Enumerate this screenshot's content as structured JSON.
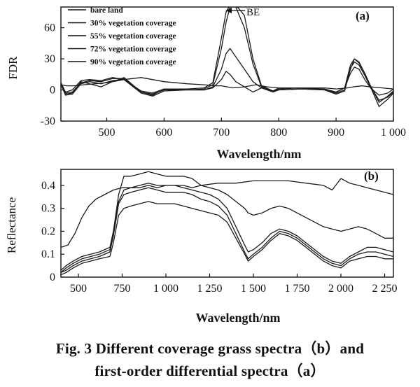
{
  "chart_data": [
    {
      "id": "a",
      "type": "line",
      "panel_label": "(a)",
      "xlabel": "Wavelength/nm",
      "ylabel": "FDR",
      "xlim": [
        420,
        1000
      ],
      "ylim": [
        -30,
        80
      ],
      "xticks": [
        500,
        600,
        700,
        800,
        900,
        1000
      ],
      "xtick_labels": [
        "500",
        "600",
        "700",
        "800",
        "900",
        "1 000"
      ],
      "yticks": [
        -30,
        0,
        30,
        60
      ],
      "ytick_labels": [
        "-30",
        "0",
        "30",
        "60"
      ],
      "legend": [
        "bare land",
        "30% vegetation coverage",
        "55% vegetation coverage",
        "72% vegetation coverage",
        "90% vegetation coverage"
      ],
      "legend_position": "top-left",
      "annotation": {
        "text": "BE",
        "x": 742,
        "y": 78
      },
      "series": [
        {
          "name": "bare land",
          "x": [
            420,
            430,
            445,
            460,
            480,
            500,
            530,
            560,
            600,
            640,
            670,
            690,
            700,
            710,
            720,
            740,
            760,
            780,
            800,
            840,
            880,
            900,
            920,
            930,
            945,
            960,
            980,
            1000
          ],
          "y": [
            5,
            4,
            4,
            5,
            6,
            7,
            10,
            12,
            8,
            6,
            5,
            4,
            4,
            3,
            2,
            3,
            5,
            3,
            2,
            2,
            2,
            1,
            2,
            3,
            4,
            3,
            2,
            1
          ]
        },
        {
          "name": "30% vegetation coverage",
          "x": [
            420,
            428,
            440,
            455,
            470,
            490,
            510,
            530,
            560,
            580,
            600,
            640,
            670,
            685,
            700,
            708,
            715,
            725,
            740,
            755,
            770,
            790,
            800,
            840,
            880,
            900,
            915,
            925,
            932,
            940,
            950,
            960,
            975,
            990,
            1000
          ],
          "y": [
            7,
            -4,
            -3,
            8,
            6,
            3,
            8,
            12,
            -2,
            -5,
            1,
            0,
            0,
            2,
            10,
            18,
            15,
            8,
            3,
            -2,
            2,
            -1,
            0,
            1,
            0,
            -2,
            2,
            16,
            22,
            20,
            10,
            2,
            -5,
            -3,
            1
          ]
        },
        {
          "name": "55% vegetation coverage",
          "x": [
            420,
            428,
            440,
            455,
            470,
            490,
            510,
            530,
            560,
            580,
            600,
            640,
            670,
            685,
            700,
            708,
            715,
            725,
            740,
            755,
            770,
            790,
            800,
            840,
            880,
            900,
            915,
            925,
            932,
            940,
            950,
            960,
            975,
            990,
            1000
          ],
          "y": [
            5,
            -5,
            -4,
            6,
            8,
            6,
            9,
            10,
            -3,
            -6,
            -1,
            0,
            0,
            3,
            20,
            35,
            40,
            32,
            20,
            8,
            2,
            -2,
            0,
            1,
            0,
            -3,
            0,
            20,
            30,
            27,
            16,
            4,
            -10,
            -7,
            -2
          ]
        },
        {
          "name": "72% vegetation coverage",
          "x": [
            420,
            428,
            440,
            455,
            470,
            490,
            510,
            530,
            560,
            580,
            600,
            640,
            670,
            685,
            700,
            708,
            715,
            725,
            740,
            755,
            770,
            790,
            800,
            840,
            880,
            900,
            915,
            925,
            932,
            940,
            950,
            960,
            975,
            990,
            1000
          ],
          "y": [
            6,
            -3,
            -2,
            7,
            9,
            8,
            11,
            11,
            -2,
            -4,
            0,
            0,
            1,
            5,
            40,
            65,
            80,
            80,
            60,
            25,
            3,
            -2,
            1,
            2,
            0,
            -4,
            -1,
            21,
            27,
            24,
            14,
            3,
            -16,
            -9,
            -3
          ]
        },
        {
          "name": "90% vegetation coverage",
          "x": [
            420,
            428,
            440,
            455,
            470,
            490,
            510,
            530,
            560,
            580,
            600,
            640,
            670,
            685,
            700,
            708,
            715,
            725,
            740,
            755,
            770,
            790,
            800,
            840,
            880,
            900,
            915,
            925,
            932,
            940,
            950,
            960,
            975,
            990,
            1000
          ],
          "y": [
            7,
            -2,
            0,
            9,
            10,
            9,
            12,
            10,
            -1,
            -3,
            1,
            1,
            2,
            7,
            50,
            75,
            82,
            82,
            72,
            30,
            4,
            -1,
            2,
            2,
            1,
            -2,
            2,
            24,
            30,
            26,
            16,
            4,
            -12,
            -6,
            -1
          ]
        }
      ]
    },
    {
      "id": "b",
      "type": "line",
      "panel_label": "(b)",
      "xlabel": "Wavelength/nm",
      "ylabel": "Reflectance",
      "xlim": [
        400,
        2300
      ],
      "ylim": [
        0,
        0.47
      ],
      "xticks": [
        500,
        750,
        1000,
        1250,
        1500,
        1750,
        2000,
        2250
      ],
      "xtick_labels": [
        "500",
        "750",
        "1 000",
        "1 250",
        "1 500",
        "1 750",
        "2 000",
        "2 250"
      ],
      "yticks": [
        0,
        0.1,
        0.2,
        0.3,
        0.4
      ],
      "ytick_labels": [
        "0",
        "0.1",
        "0.2",
        "0.3",
        "0.4"
      ],
      "series": [
        {
          "name": "bare land",
          "x": [
            400,
            440,
            480,
            520,
            560,
            600,
            650,
            700,
            750,
            800,
            850,
            900,
            950,
            1000,
            1050,
            1100,
            1150,
            1200,
            1300,
            1400,
            1500,
            1600,
            1700,
            1800,
            1900,
            1950,
            2000,
            2050,
            2100,
            2150,
            2200,
            2250,
            2300
          ],
          "y": [
            0.13,
            0.14,
            0.19,
            0.26,
            0.31,
            0.34,
            0.36,
            0.38,
            0.39,
            0.39,
            0.39,
            0.4,
            0.39,
            0.4,
            0.4,
            0.4,
            0.39,
            0.4,
            0.41,
            0.41,
            0.42,
            0.42,
            0.42,
            0.41,
            0.4,
            0.38,
            0.43,
            0.41,
            0.4,
            0.39,
            0.38,
            0.37,
            0.36
          ]
        },
        {
          "name": "30% vegetation coverage",
          "x": [
            400,
            430,
            470,
            520,
            570,
            620,
            680,
            700,
            730,
            760,
            800,
            850,
            900,
            950,
            1000,
            1050,
            1100,
            1150,
            1200,
            1250,
            1300,
            1350,
            1400,
            1450,
            1470,
            1500,
            1550,
            1600,
            1650,
            1700,
            1750,
            1800,
            1850,
            1900,
            1950,
            2000,
            2050,
            2100,
            2150,
            2200,
            2250,
            2300
          ],
          "y": [
            0.03,
            0.05,
            0.07,
            0.09,
            0.1,
            0.11,
            0.13,
            0.2,
            0.36,
            0.44,
            0.44,
            0.45,
            0.46,
            0.45,
            0.44,
            0.44,
            0.44,
            0.43,
            0.4,
            0.39,
            0.38,
            0.36,
            0.33,
            0.3,
            0.28,
            0.27,
            0.28,
            0.3,
            0.31,
            0.3,
            0.28,
            0.26,
            0.24,
            0.22,
            0.21,
            0.2,
            0.21,
            0.22,
            0.21,
            0.19,
            0.17,
            0.17
          ]
        },
        {
          "name": "55% vegetation coverage",
          "x": [
            400,
            430,
            470,
            520,
            570,
            620,
            680,
            700,
            730,
            760,
            800,
            850,
            900,
            950,
            1000,
            1050,
            1100,
            1150,
            1200,
            1250,
            1300,
            1350,
            1400,
            1450,
            1470,
            1500,
            1550,
            1600,
            1650,
            1700,
            1750,
            1800,
            1850,
            1900,
            1950,
            2000,
            2050,
            2100,
            2150,
            2200,
            2250,
            2300
          ],
          "y": [
            0.02,
            0.04,
            0.06,
            0.08,
            0.09,
            0.1,
            0.12,
            0.2,
            0.33,
            0.38,
            0.39,
            0.4,
            0.41,
            0.4,
            0.4,
            0.4,
            0.39,
            0.38,
            0.37,
            0.36,
            0.34,
            0.3,
            0.22,
            0.14,
            0.11,
            0.12,
            0.15,
            0.19,
            0.21,
            0.2,
            0.18,
            0.15,
            0.12,
            0.09,
            0.07,
            0.06,
            0.09,
            0.11,
            0.13,
            0.13,
            0.12,
            0.11
          ]
        },
        {
          "name": "72% vegetation coverage",
          "x": [
            400,
            430,
            470,
            520,
            570,
            620,
            680,
            700,
            730,
            760,
            800,
            850,
            900,
            950,
            1000,
            1050,
            1100,
            1150,
            1200,
            1250,
            1300,
            1350,
            1400,
            1450,
            1470,
            1500,
            1550,
            1600,
            1650,
            1700,
            1750,
            1800,
            1850,
            1900,
            1950,
            2000,
            2050,
            2100,
            2150,
            2200,
            2250,
            2300
          ],
          "y": [
            0.02,
            0.03,
            0.05,
            0.07,
            0.08,
            0.09,
            0.11,
            0.18,
            0.32,
            0.36,
            0.37,
            0.38,
            0.39,
            0.38,
            0.37,
            0.37,
            0.37,
            0.36,
            0.34,
            0.33,
            0.31,
            0.27,
            0.19,
            0.11,
            0.08,
            0.1,
            0.13,
            0.17,
            0.2,
            0.19,
            0.17,
            0.14,
            0.11,
            0.08,
            0.06,
            0.05,
            0.08,
            0.1,
            0.11,
            0.11,
            0.1,
            0.09
          ]
        },
        {
          "name": "90% vegetation coverage",
          "x": [
            400,
            430,
            470,
            520,
            570,
            620,
            680,
            700,
            730,
            760,
            800,
            850,
            900,
            950,
            1000,
            1050,
            1100,
            1150,
            1200,
            1250,
            1300,
            1350,
            1400,
            1450,
            1470,
            1500,
            1550,
            1600,
            1650,
            1700,
            1750,
            1800,
            1850,
            1900,
            1950,
            2000,
            2050,
            2100,
            2150,
            2200,
            2250,
            2300
          ],
          "y": [
            0.01,
            0.02,
            0.04,
            0.06,
            0.07,
            0.08,
            0.09,
            0.15,
            0.27,
            0.3,
            0.31,
            0.32,
            0.33,
            0.32,
            0.32,
            0.32,
            0.31,
            0.3,
            0.29,
            0.28,
            0.27,
            0.24,
            0.17,
            0.1,
            0.07,
            0.09,
            0.12,
            0.16,
            0.19,
            0.18,
            0.16,
            0.13,
            0.1,
            0.07,
            0.05,
            0.04,
            0.07,
            0.08,
            0.09,
            0.09,
            0.08,
            0.08
          ]
        }
      ]
    }
  ],
  "caption": {
    "line1": "Fig. 3   Different coverage grass spectra（b）and",
    "line2": "first-order differential spectra（a）"
  }
}
